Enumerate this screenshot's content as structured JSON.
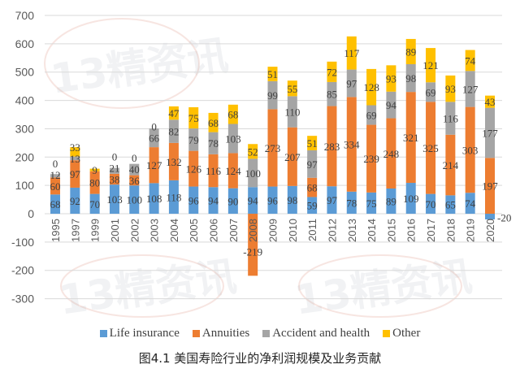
{
  "watermark": "13精资讯",
  "caption": "图4.1  美国寿险行业的净利润规模及业务贡献",
  "chart_data": {
    "type": "bar",
    "stacked": true,
    "title": "",
    "xlabel": "",
    "ylabel": "",
    "ylim": [
      -300,
      700
    ],
    "yticks": [
      700,
      600,
      500,
      400,
      300,
      200,
      100,
      0,
      -100,
      -200,
      -300
    ],
    "grid": true,
    "legend_position": "bottom",
    "categories": [
      "1995",
      "1997",
      "1999",
      "2001",
      "2002",
      "2003",
      "2004",
      "2005",
      "2006",
      "2007",
      "2008",
      "2009",
      "2010",
      "2011",
      "2012",
      "2013",
      "2014",
      "2015",
      "2016",
      "2017",
      "2018",
      "2019",
      "2020"
    ],
    "series": [
      {
        "name": "Life insurance",
        "color": "#5B9BD5",
        "values": [
          68,
          92,
          70,
          103,
          100,
          108,
          118,
          96,
          94,
          90,
          94,
          96,
          98,
          59,
          97,
          78,
          75,
          89,
          109,
          70,
          65,
          74,
          -20
        ]
      },
      {
        "name": "Annuities",
        "color": "#ED7D31",
        "values": [
          60,
          97,
          80,
          38,
          36,
          127,
          132,
          126,
          116,
          124,
          -219,
          273,
          207,
          68,
          283,
          334,
          239,
          248,
          321,
          325,
          214,
          303,
          197
        ]
      },
      {
        "name": "Accident and health",
        "color": "#A5A5A5",
        "values": [
          12,
          13,
          null,
          21,
          40,
          66,
          82,
          79,
          78,
          103,
          100,
          99,
          110,
          97,
          85,
          97,
          69,
          94,
          98,
          69,
          116,
          127,
          177
        ]
      },
      {
        "name": "Other",
        "color": "#FFC000",
        "values": [
          0,
          33,
          9,
          0,
          0,
          0,
          47,
          75,
          68,
          68,
          52,
          51,
          55,
          51,
          72,
          117,
          128,
          93,
          89,
          121,
          93,
          74,
          43
        ]
      }
    ]
  }
}
